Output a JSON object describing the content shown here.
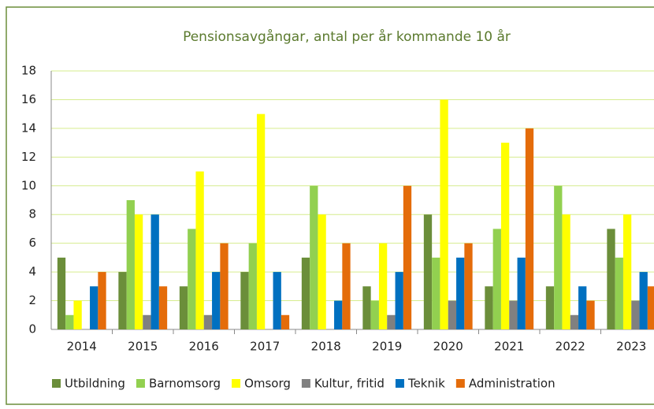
{
  "chart_data": {
    "type": "bar",
    "title": "Pensionsavgångar, antal per år kommande 10 år",
    "categories": [
      "2014",
      "2015",
      "2016",
      "2017",
      "2018",
      "2019",
      "2020",
      "2021",
      "2022",
      "2023"
    ],
    "series": [
      {
        "name": "Utbildning",
        "color": "#6b8e3a",
        "values": [
          5,
          4,
          3,
          4,
          5,
          3,
          8,
          3,
          3,
          7
        ]
      },
      {
        "name": "Barnomsorg",
        "color": "#92d050",
        "values": [
          1,
          9,
          7,
          6,
          10,
          2,
          5,
          7,
          10,
          5
        ]
      },
      {
        "name": "Omsorg",
        "color": "#ffff00",
        "values": [
          2,
          8,
          11,
          15,
          8,
          6,
          16,
          13,
          8,
          8
        ]
      },
      {
        "name": "Kultur, fritid",
        "color": "#808080",
        "values": [
          0,
          1,
          1,
          0,
          0,
          1,
          2,
          2,
          1,
          2
        ]
      },
      {
        "name": "Teknik",
        "color": "#0070c0",
        "values": [
          3,
          8,
          4,
          4,
          2,
          4,
          5,
          5,
          3,
          4
        ]
      },
      {
        "name": "Administration",
        "color": "#e46c0a",
        "values": [
          4,
          3,
          6,
          1,
          6,
          10,
          6,
          14,
          2,
          3
        ]
      }
    ],
    "ylim": [
      0,
      18
    ],
    "yticks": [
      0,
      2,
      4,
      6,
      8,
      10,
      12,
      14,
      16,
      18
    ],
    "grid": true,
    "legend": "bottom"
  }
}
